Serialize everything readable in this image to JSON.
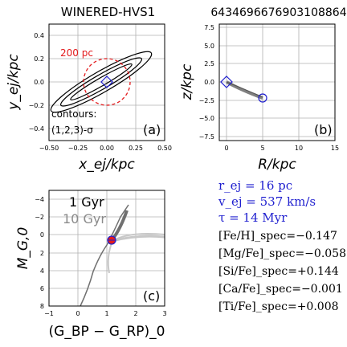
{
  "panel_a": {
    "title": "WINERED-HVS1",
    "xlabel": "x_ej/kpc",
    "ylabel": "y_ej/kpc",
    "panel_label": "(a)",
    "circle_label": "200 pc",
    "contour_label_1": "contours:",
    "contour_label_2": "(1,2,3)-σ",
    "xticks": [
      "−0.50",
      "−0.25",
      "0.00",
      "0.25",
      "0.50"
    ],
    "yticks": [
      "0.4",
      "0.2",
      "0.0",
      "−0.2",
      "−0.4"
    ]
  },
  "panel_b": {
    "title": "6434696676903108864",
    "xlabel": "R/kpc",
    "ylabel": "z/kpc",
    "panel_label": "(b)",
    "xticks": [
      "0",
      "5",
      "10",
      "15"
    ],
    "yticks": [
      "7.5",
      "5.0",
      "2.5",
      "0.0",
      "−2.5",
      "−5.0",
      "−7.5"
    ]
  },
  "panel_c": {
    "xlabel": "(G_BP − G_RP)_0",
    "ylabel": "M_G,0",
    "panel_label": "(c)",
    "iso1_label": "1 Gyr",
    "iso2_label": "10 Gyr",
    "xticks": [
      "−1",
      "0",
      "1",
      "2",
      "3"
    ],
    "yticks": [
      "−4",
      "−2",
      "0",
      "2",
      "4",
      "6",
      "8"
    ]
  },
  "info": {
    "r_ej": "r_ej = 16 pc",
    "v_ej": "v_ej = 537 km/s",
    "tau": "τ = 14 Myr",
    "abundances": [
      {
        "label": "[Fe/H]_spec",
        "value": "=−0.147"
      },
      {
        "label": "[Mg/Fe]_spec",
        "value": "=−0.058"
      },
      {
        "label": "[Si/Fe]_spec",
        "value": "=+0.144"
      },
      {
        "label": "[Ca/Fe]_spec",
        "value": "=−0.001"
      },
      {
        "label": "[Ti/Fe]_spec",
        "value": "=+0.008"
      }
    ]
  },
  "colors": {
    "red": "#e31a1c",
    "blue": "#1f1fcf",
    "gray_dark": "#707070",
    "gray_light": "#c8c8c8"
  },
  "chart_data": [
    {
      "type": "scatter",
      "xlim": [
        -0.5,
        0.5
      ],
      "ylim": [
        -0.5,
        0.5
      ],
      "grid": true,
      "marker": {
        "x": 0.0,
        "y": 0.0,
        "shape": "diamond"
      },
      "circle_radius": 0.2,
      "contours": [
        {
          "center": [
            -0.05,
            0.0
          ],
          "semi_major": 0.3,
          "semi_minor": 0.035,
          "angle_deg": 30
        },
        {
          "center": [
            -0.05,
            0.0
          ],
          "semi_major": 0.4,
          "semi_minor": 0.06,
          "angle_deg": 30
        },
        {
          "center": [
            -0.05,
            0.0
          ],
          "semi_major": 0.5,
          "semi_minor": 0.09,
          "angle_deg": 30
        }
      ]
    },
    {
      "type": "line",
      "xlim": [
        -1,
        15
      ],
      "ylim": [
        -8,
        8
      ],
      "grid": true,
      "trajectory": {
        "x": [
          0.0,
          1.0,
          2.0,
          3.0,
          4.0,
          5.0
        ],
        "y": [
          0.0,
          -0.6,
          -1.1,
          -1.5,
          -1.8,
          -2.2
        ]
      },
      "start_marker": {
        "x": 0.0,
        "y": 0.0,
        "shape": "diamond"
      },
      "end_marker": {
        "x": 5.0,
        "y": -2.2,
        "shape": "circle"
      }
    },
    {
      "type": "line",
      "xlim": [
        -1,
        3
      ],
      "ylim": [
        8,
        -5
      ],
      "grid": true,
      "series": [
        {
          "name": "1 Gyr",
          "x": [
            -0.1,
            0.1,
            0.3,
            0.5,
            0.7,
            0.9,
            1.0,
            1.1,
            1.2,
            1.35,
            1.5,
            1.6
          ],
          "y": [
            8.0,
            6.4,
            5.0,
            3.6,
            2.4,
            1.3,
            0.7,
            0.2,
            -0.3,
            -1.6,
            -3.0,
            -3.8
          ]
        },
        {
          "name": "10 Gyr",
          "x": [
            0.9,
            1.0,
            1.1,
            1.2,
            1.5,
            2.0,
            2.5,
            3.0
          ],
          "y": [
            4.5,
            3.2,
            1.6,
            0.0,
            -0.6,
            -0.9,
            -1.0,
            -1.1
          ]
        }
      ],
      "star": {
        "x": 1.15,
        "y": 0.5
      }
    }
  ]
}
